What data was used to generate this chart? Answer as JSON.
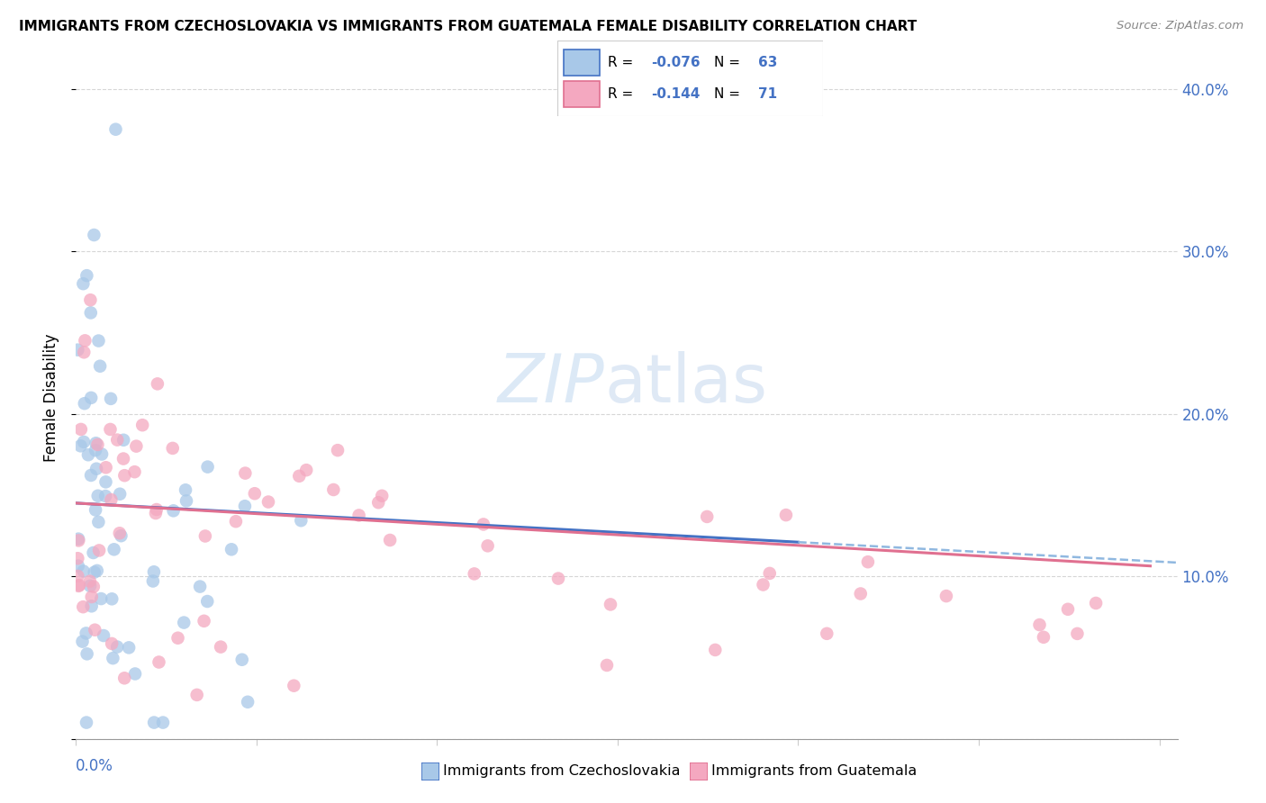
{
  "title": "IMMIGRANTS FROM CZECHOSLOVAKIA VS IMMIGRANTS FROM GUATEMALA FEMALE DISABILITY CORRELATION CHART",
  "source": "Source: ZipAtlas.com",
  "ylabel": "Female Disability",
  "blue_color": "#a8c8e8",
  "pink_color": "#f4a8c0",
  "blue_line_color": "#4472c4",
  "pink_line_color": "#e07090",
  "blue_dash_color": "#90b8e0",
  "legend1_r": "-0.076",
  "legend1_n": "63",
  "legend2_r": "-0.144",
  "legend2_n": "71",
  "watermark_zip": "ZIP",
  "watermark_atlas": "atlas",
  "xlim": [
    0,
    0.61
  ],
  "ylim": [
    0,
    0.42
  ],
  "yticks": [
    0.0,
    0.1,
    0.2,
    0.3,
    0.4
  ],
  "ytick_labels": [
    "",
    "10.0%",
    "20.0%",
    "30.0%",
    "40.0%"
  ],
  "title_fontsize": 11,
  "axis_label_color": "#4472c4",
  "grid_color": "#cccccc"
}
